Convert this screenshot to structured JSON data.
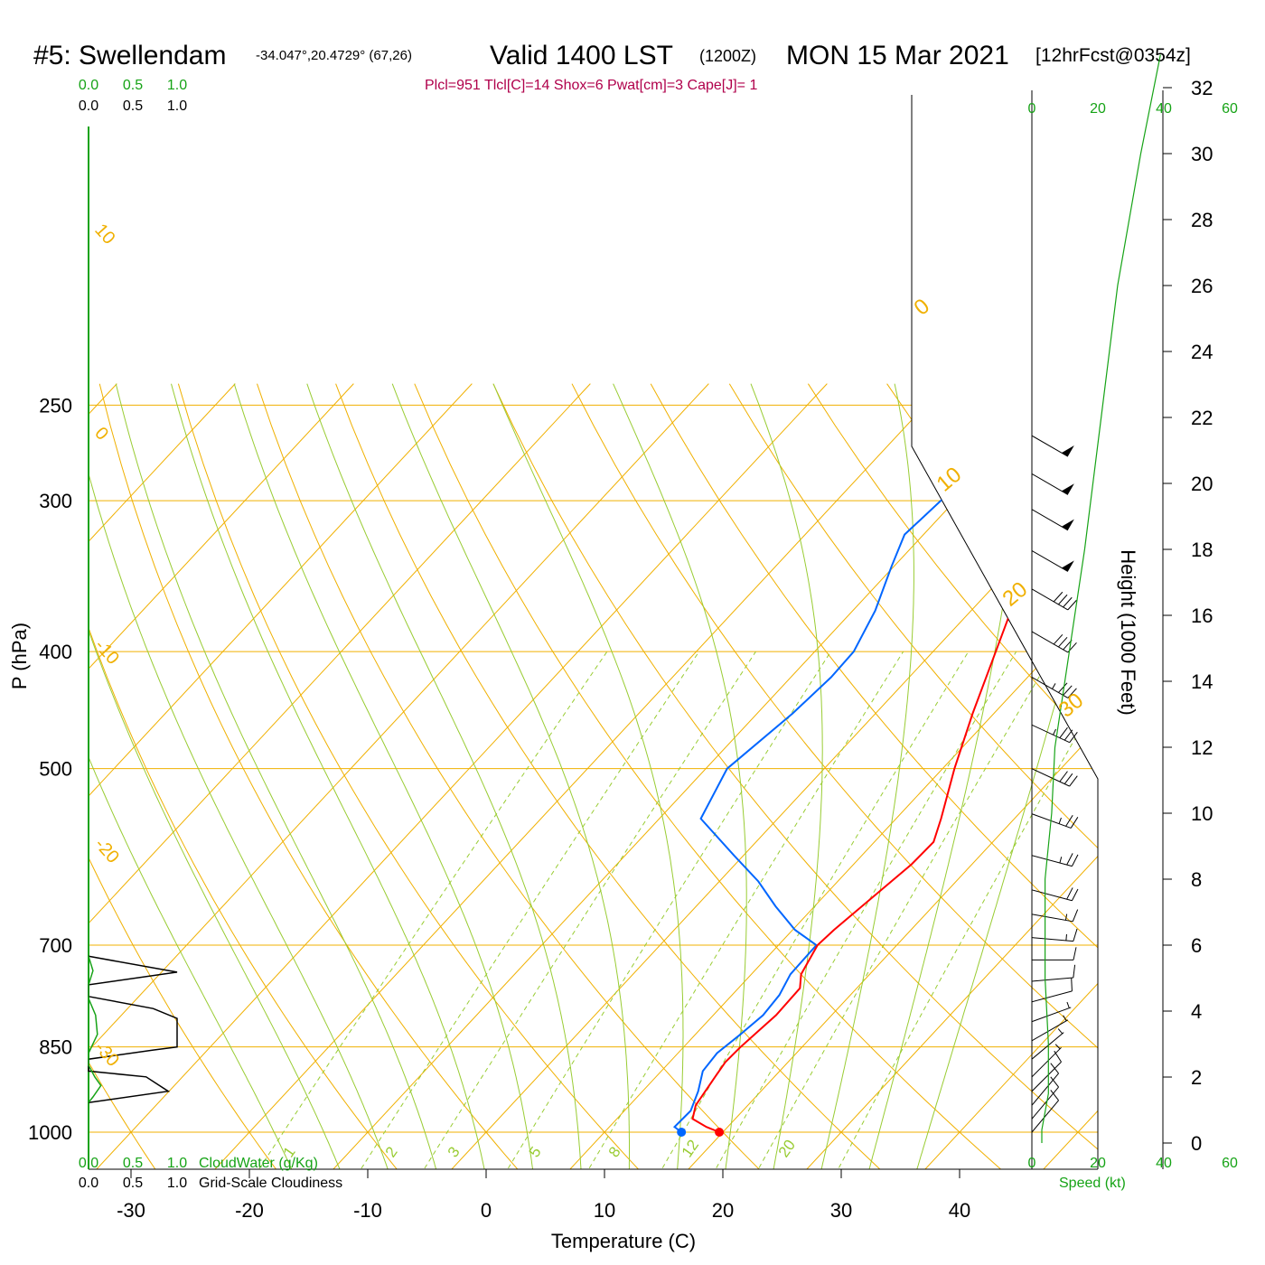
{
  "title": {
    "station": "#5: Swellendam",
    "coords": "-34.047°,20.4729° (67,26)",
    "valid": "Valid 1400 LST",
    "zulu": "(1200Z)",
    "date": "MON 15 Mar 2021",
    "forecast": "[12hrFcst@0354z]"
  },
  "indices": "Plcl=951 Tlcl[C]=14 Shox=6 Pwat[cm]=3 Cape[J]= 1",
  "colors": {
    "temperature": "#ff0000",
    "dewpoint": "#0066ff",
    "isotherm": "#f0b000",
    "dry_adiabat": "#f0b000",
    "moist_adiabat": "#99cc33",
    "mixing_ratio": "#99cc33",
    "cloud_water": "#16a316",
    "cloudiness": "#000000",
    "wind_speed": "#16a316",
    "indices": "#b0004b"
  },
  "chart_data": {
    "type": "skew-t",
    "xlabel": "Temperature (C)",
    "ylabel": "P (hPa)",
    "y2label": "Height (1000 Feet)",
    "x_ticks": [
      -30,
      -20,
      -10,
      0,
      10,
      20,
      30,
      40
    ],
    "pressure_ticks": [
      250,
      300,
      400,
      500,
      700,
      850,
      1000
    ],
    "height_ticks": [
      0,
      2,
      4,
      6,
      8,
      10,
      12,
      14,
      16,
      18,
      20,
      22,
      24,
      26,
      28,
      30,
      32
    ],
    "isotherm_labels": [
      "10",
      "0",
      "-10",
      "-20",
      "-30"
    ],
    "dry_adiabat_labels": [
      "0",
      "10",
      "20",
      "30"
    ],
    "mixing_ratio_labels": [
      "1",
      "2",
      "3",
      "5",
      "8",
      "12",
      "20"
    ],
    "temperature_profile": [
      {
        "p": 1000,
        "t": 19.7
      },
      {
        "p": 990,
        "t": 18.2
      },
      {
        "p": 975,
        "t": 16.4
      },
      {
        "p": 950,
        "t": 15.6
      },
      {
        "p": 900,
        "t": 15.0
      },
      {
        "p": 875,
        "t": 14.7
      },
      {
        "p": 850,
        "t": 14.8
      },
      {
        "p": 800,
        "t": 15.3
      },
      {
        "p": 760,
        "t": 15.2
      },
      {
        "p": 740,
        "t": 14.2
      },
      {
        "p": 700,
        "t": 13.3
      },
      {
        "p": 680,
        "t": 13.5
      },
      {
        "p": 650,
        "t": 14.0
      },
      {
        "p": 600,
        "t": 14.9
      },
      {
        "p": 575,
        "t": 15.0
      },
      {
        "p": 550,
        "t": 13.8
      },
      {
        "p": 500,
        "t": 11.0
      },
      {
        "p": 450,
        "t": 8.2
      },
      {
        "p": 400,
        "t": 5.3
      },
      {
        "p": 350,
        "t": 2.0
      },
      {
        "p": 300,
        "t": -0.8
      },
      {
        "p": 280,
        "t": -2.0
      },
      {
        "p": 260,
        "t": -3.2
      }
    ],
    "dewpoint_profile": [
      {
        "p": 1000,
        "t": 16.5
      },
      {
        "p": 990,
        "t": 15.5
      },
      {
        "p": 960,
        "t": 15.6
      },
      {
        "p": 925,
        "t": 14.7
      },
      {
        "p": 890,
        "t": 13.5
      },
      {
        "p": 860,
        "t": 13.3
      },
      {
        "p": 830,
        "t": 13.8
      },
      {
        "p": 800,
        "t": 14.2
      },
      {
        "p": 770,
        "t": 14.0
      },
      {
        "p": 740,
        "t": 13.3
      },
      {
        "p": 700,
        "t": 13.2
      },
      {
        "p": 680,
        "t": 10.2
      },
      {
        "p": 650,
        "t": 6.7
      },
      {
        "p": 620,
        "t": 3.3
      },
      {
        "p": 590,
        "t": -0.8
      },
      {
        "p": 550,
        "t": -6.5
      },
      {
        "p": 500,
        "t": -8.2
      },
      {
        "p": 450,
        "t": -7.0
      },
      {
        "p": 420,
        "t": -6.6
      },
      {
        "p": 400,
        "t": -6.7
      },
      {
        "p": 370,
        "t": -8.1
      },
      {
        "p": 340,
        "t": -10.2
      },
      {
        "p": 320,
        "t": -11.6
      },
      {
        "p": 300,
        "t": -11.2
      },
      {
        "p": 280,
        "t": -10.0
      },
      {
        "p": 260,
        "t": -9.8
      }
    ],
    "surface_points": {
      "temperature": 19.7,
      "dewpoint": 16.5,
      "pressure": 1000
    },
    "wind_profile": [
      {
        "p": 265,
        "dir": 300,
        "spd": 50
      },
      {
        "p": 285,
        "dir": 300,
        "spd": 50
      },
      {
        "p": 305,
        "dir": 300,
        "spd": 50
      },
      {
        "p": 330,
        "dir": 300,
        "spd": 50
      },
      {
        "p": 355,
        "dir": 300,
        "spd": 40
      },
      {
        "p": 385,
        "dir": 300,
        "spd": 40
      },
      {
        "p": 420,
        "dir": 300,
        "spd": 35
      },
      {
        "p": 460,
        "dir": 295,
        "spd": 35
      },
      {
        "p": 500,
        "dir": 295,
        "spd": 30
      },
      {
        "p": 545,
        "dir": 290,
        "spd": 25
      },
      {
        "p": 590,
        "dir": 285,
        "spd": 25
      },
      {
        "p": 630,
        "dir": 285,
        "spd": 20
      },
      {
        "p": 660,
        "dir": 280,
        "spd": 15
      },
      {
        "p": 690,
        "dir": 275,
        "spd": 15
      },
      {
        "p": 720,
        "dir": 270,
        "spd": 10
      },
      {
        "p": 750,
        "dir": 265,
        "spd": 10
      },
      {
        "p": 780,
        "dir": 255,
        "spd": 10
      },
      {
        "p": 810,
        "dir": 250,
        "spd": 5
      },
      {
        "p": 840,
        "dir": 240,
        "spd": 5
      },
      {
        "p": 870,
        "dir": 230,
        "spd": 5
      },
      {
        "p": 900,
        "dir": 225,
        "spd": 5
      },
      {
        "p": 925,
        "dir": 225,
        "spd": 10
      },
      {
        "p": 950,
        "dir": 220,
        "spd": 10
      },
      {
        "p": 975,
        "dir": 220,
        "spd": 10
      },
      {
        "p": 1000,
        "dir": 220,
        "spd": 10
      }
    ],
    "wind_speed_profile": [
      {
        "h": 0.0,
        "spd": 3
      },
      {
        "h": 0.4,
        "spd": 3
      },
      {
        "h": 1.5,
        "spd": 5
      },
      {
        "h": 3.0,
        "spd": 5
      },
      {
        "h": 5.0,
        "spd": 4
      },
      {
        "h": 8.0,
        "spd": 4
      },
      {
        "h": 10.0,
        "spd": 6
      },
      {
        "h": 12.0,
        "spd": 7
      },
      {
        "h": 14.0,
        "spd": 10
      },
      {
        "h": 18.0,
        "spd": 16
      },
      {
        "h": 22.0,
        "spd": 21
      },
      {
        "h": 26.0,
        "spd": 26
      },
      {
        "h": 30.0,
        "spd": 33
      },
      {
        "h": 33.0,
        "spd": 39
      }
    ],
    "wind_speed_axis": {
      "label": "Speed (kt)",
      "ticks": [
        0,
        20,
        40,
        60
      ]
    },
    "cloud_water": {
      "label": "CloudWater (g/Kg)",
      "ticks": [
        "0.0",
        "0.5",
        "1.0"
      ],
      "profile": [
        {
          "p": 715,
          "v": 0.0
        },
        {
          "p": 735,
          "v": 0.05
        },
        {
          "p": 755,
          "v": 0.0
        },
        {
          "p": 775,
          "v": 0.0
        },
        {
          "p": 800,
          "v": 0.08
        },
        {
          "p": 830,
          "v": 0.1
        },
        {
          "p": 860,
          "v": 0.0
        },
        {
          "p": 880,
          "v": 0.0
        },
        {
          "p": 900,
          "v": 0.07
        },
        {
          "p": 915,
          "v": 0.14
        },
        {
          "p": 935,
          "v": 0.05
        },
        {
          "p": 945,
          "v": 0.0
        }
      ]
    },
    "cloudiness": {
      "label": "Grid-Scale Cloudiness",
      "ticks": [
        "0.0",
        "0.5",
        "1.0"
      ],
      "profile": [
        {
          "p": 715,
          "v": 0.0
        },
        {
          "p": 737,
          "v": 1.0
        },
        {
          "p": 755,
          "v": 0.0
        },
        {
          "p": 772,
          "v": 0.0
        },
        {
          "p": 790,
          "v": 0.73
        },
        {
          "p": 805,
          "v": 1.0
        },
        {
          "p": 850,
          "v": 1.0
        },
        {
          "p": 855,
          "v": 0.73
        },
        {
          "p": 870,
          "v": 0.0
        },
        {
          "p": 890,
          "v": 0.0
        },
        {
          "p": 900,
          "v": 0.65
        },
        {
          "p": 925,
          "v": 0.9
        },
        {
          "p": 945,
          "v": 0.0
        }
      ]
    }
  }
}
